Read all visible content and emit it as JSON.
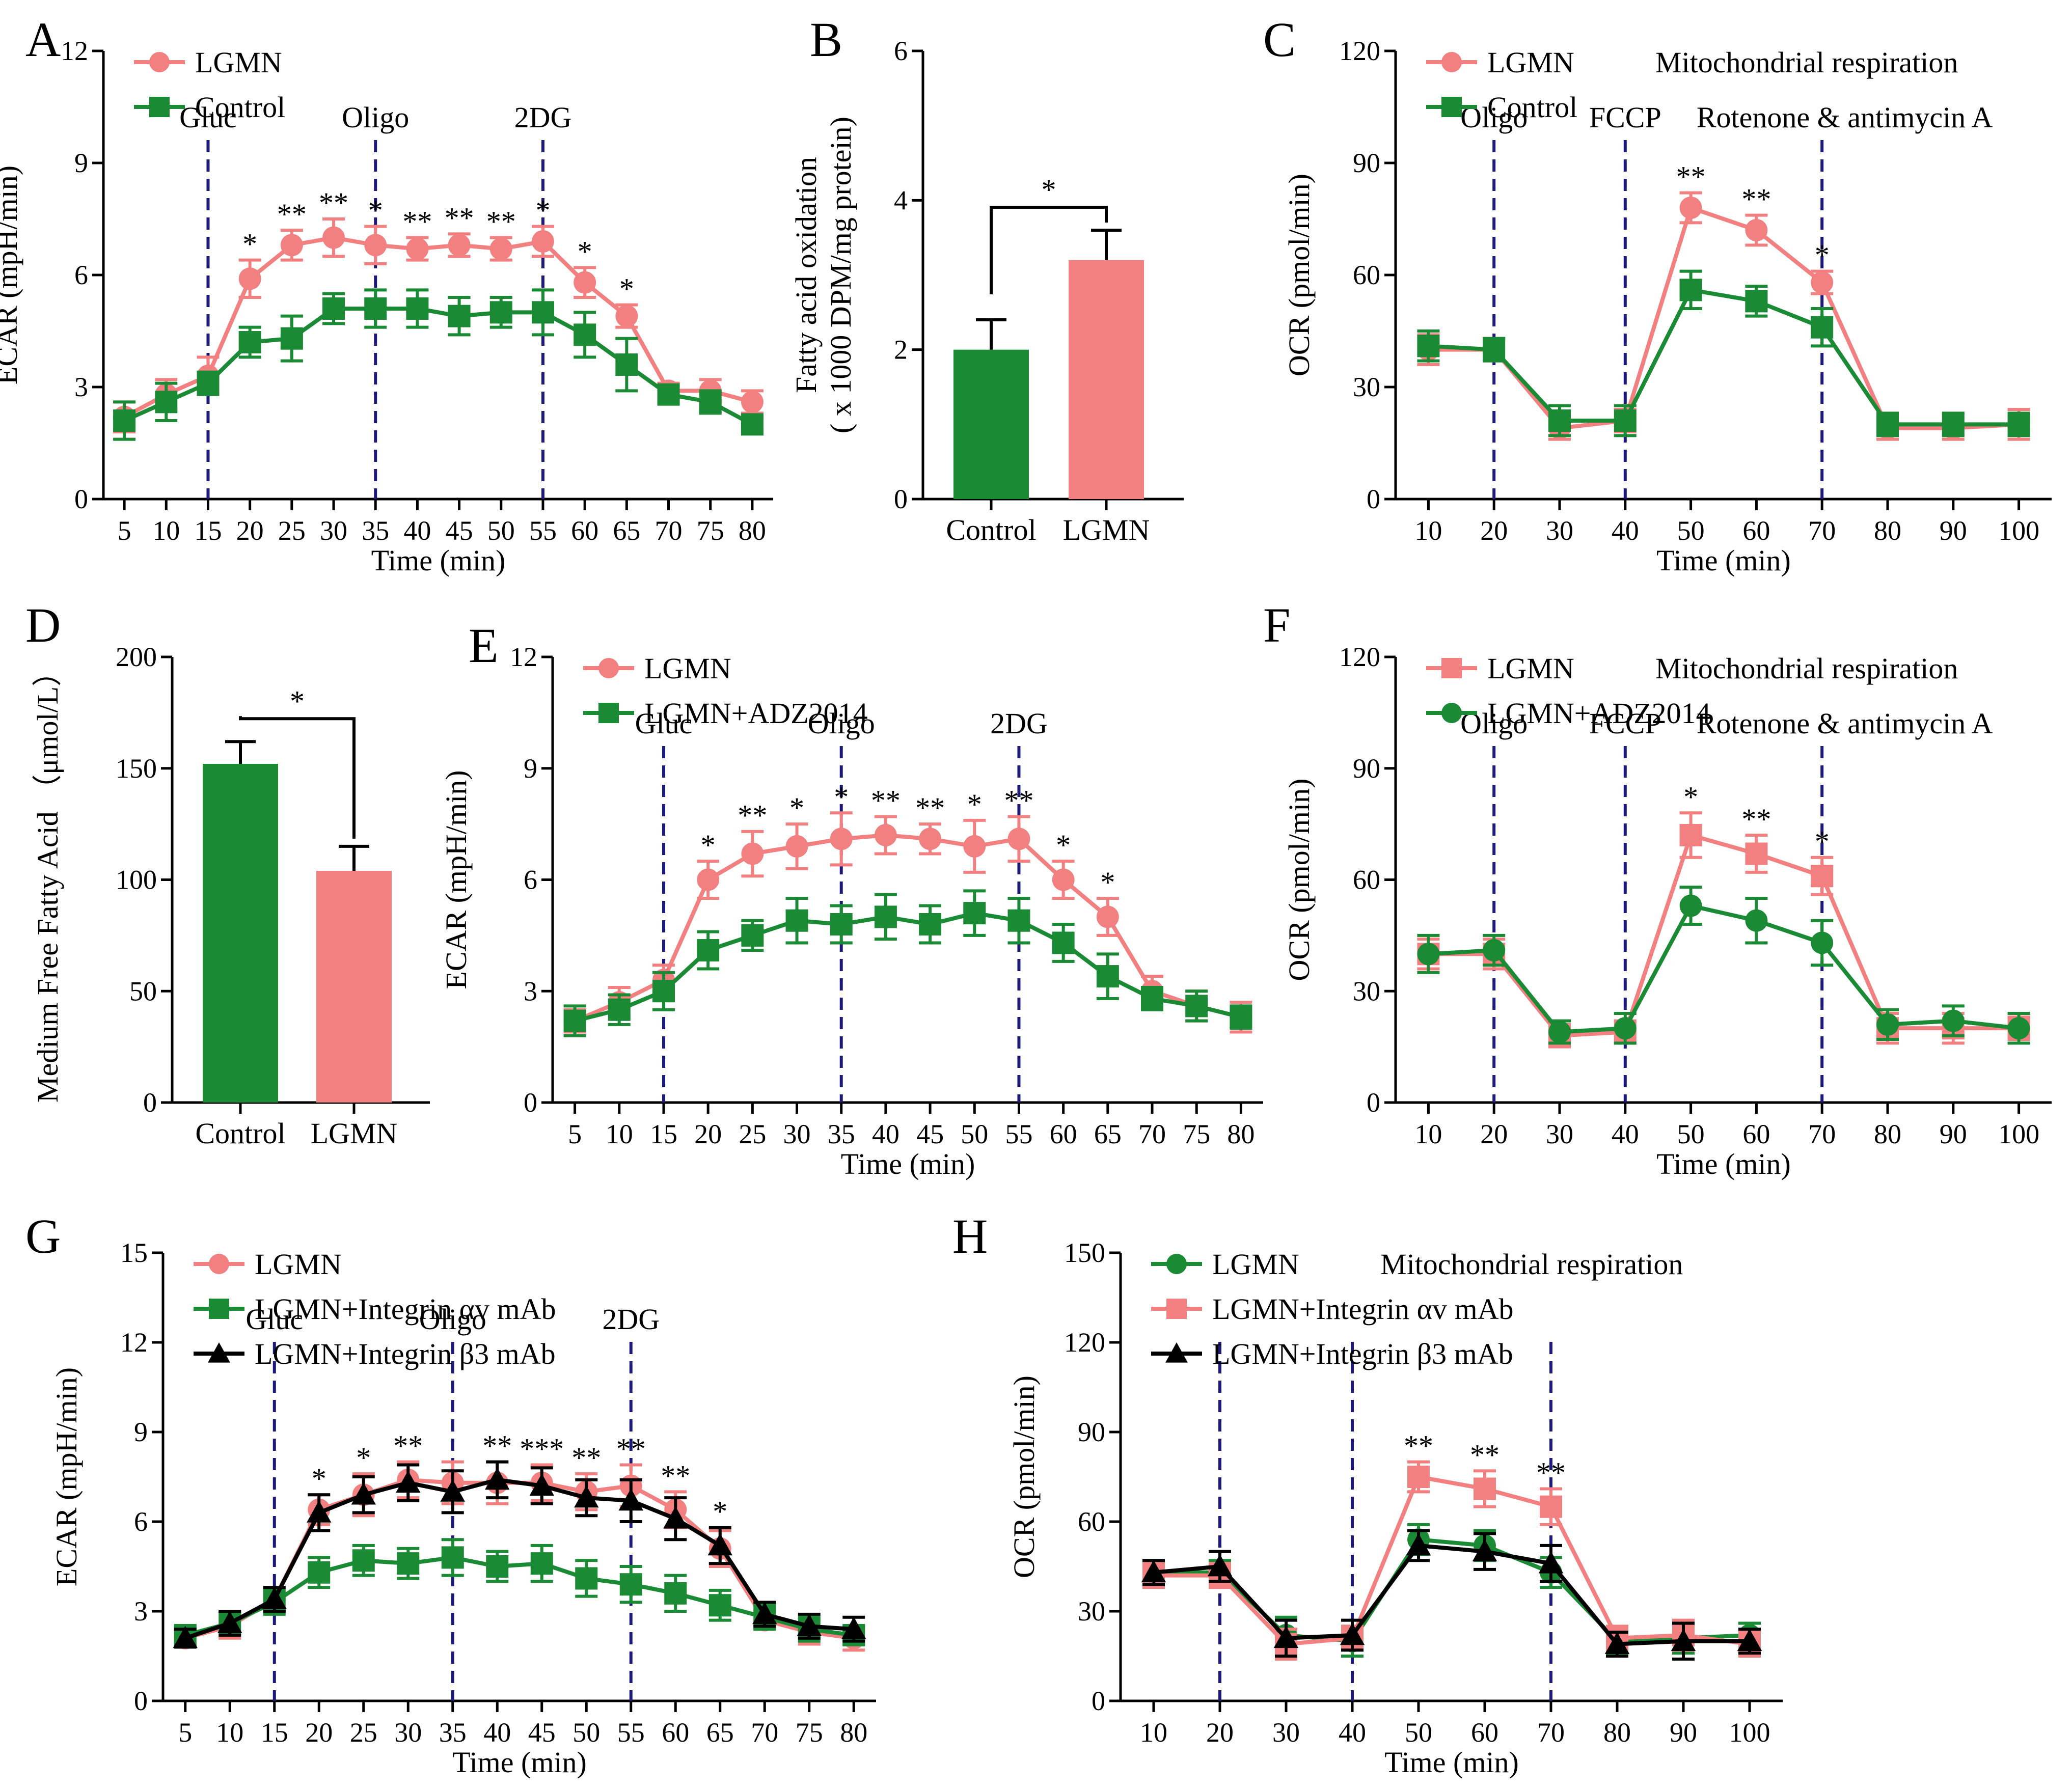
{
  "colors": {
    "lgmn": "#F28080",
    "control": "#1A8A35",
    "black": "#000000",
    "vline": "#1E1A7A"
  },
  "panels": [
    "A",
    "B",
    "C",
    "D",
    "E",
    "F",
    "G",
    "H"
  ],
  "chart_data": [
    {
      "panel": "A",
      "type": "line",
      "title": "",
      "xlabel": "Time (min)",
      "ylabel": "ECAR (mpH/min)",
      "ylim": [
        0,
        12
      ],
      "yticks": [
        0,
        3,
        6,
        9,
        12
      ],
      "x": [
        5,
        10,
        15,
        20,
        25,
        30,
        35,
        40,
        45,
        50,
        55,
        60,
        65,
        70,
        75,
        80
      ],
      "xlim": [
        2.5,
        82.5
      ],
      "xticks": [
        5,
        10,
        15,
        20,
        25,
        30,
        35,
        40,
        45,
        50,
        55,
        60,
        65,
        70,
        75,
        80
      ],
      "series": [
        {
          "name": "LGMN",
          "color": "#F28080",
          "marker": "circle",
          "values": [
            2.2,
            2.8,
            3.3,
            5.9,
            6.8,
            7.0,
            6.8,
            6.7,
            6.8,
            6.7,
            6.9,
            5.8,
            4.9,
            2.9,
            2.9,
            2.6
          ],
          "errors": [
            0.4,
            0.4,
            0.5,
            0.5,
            0.4,
            0.5,
            0.5,
            0.3,
            0.3,
            0.3,
            0.4,
            0.4,
            0.3,
            0.2,
            0.3,
            0.3
          ]
        },
        {
          "name": "Control",
          "color": "#1A8A35",
          "marker": "square",
          "values": [
            2.1,
            2.6,
            3.1,
            4.2,
            4.3,
            5.1,
            5.1,
            5.1,
            4.9,
            5.0,
            5.0,
            4.4,
            3.6,
            2.8,
            2.6,
            2.0
          ],
          "errors": [
            0.5,
            0.5,
            0.3,
            0.4,
            0.6,
            0.4,
            0.5,
            0.5,
            0.5,
            0.4,
            0.6,
            0.6,
            0.7,
            0.2,
            0.3,
            0.2
          ]
        }
      ],
      "vlines": [
        {
          "x": 15,
          "label": "Gluc"
        },
        {
          "x": 35,
          "label": "Oligo"
        },
        {
          "x": 55,
          "label": "2DG"
        }
      ],
      "significance": [
        {
          "x": 20,
          "text": "*"
        },
        {
          "x": 25,
          "text": "**"
        },
        {
          "x": 30,
          "text": "**"
        },
        {
          "x": 35,
          "text": "*"
        },
        {
          "x": 40,
          "text": "**"
        },
        {
          "x": 45,
          "text": "**"
        },
        {
          "x": 50,
          "text": "**"
        },
        {
          "x": 55,
          "text": "*"
        },
        {
          "x": 60,
          "text": "*"
        },
        {
          "x": 65,
          "text": "*"
        }
      ],
      "legend_title": ""
    },
    {
      "panel": "B",
      "type": "bar",
      "xlabel": "",
      "ylabel_lines": [
        "Fatty acid oxidation",
        "( x 1000 DPM/mg protein)"
      ],
      "ylim": [
        0,
        6
      ],
      "yticks": [
        0,
        2,
        4,
        6
      ],
      "categories": [
        "Control",
        "LGMN"
      ],
      "values": [
        2.0,
        3.2
      ],
      "errors": [
        0.4,
        0.4
      ],
      "bar_colors": [
        "#1A8A35",
        "#F28080"
      ],
      "significance": "*"
    },
    {
      "panel": "C",
      "type": "line",
      "xlabel": "Time (min)",
      "ylabel": "OCR (pmol/min)",
      "ylim": [
        0,
        120
      ],
      "yticks": [
        0,
        30,
        60,
        90,
        120
      ],
      "x": [
        10,
        20,
        30,
        40,
        50,
        60,
        70,
        80,
        90,
        100
      ],
      "xlim": [
        5,
        105
      ],
      "xticks": [
        10,
        20,
        30,
        40,
        50,
        60,
        70,
        80,
        90,
        100
      ],
      "series": [
        {
          "name": "LGMN",
          "color": "#F28080",
          "marker": "circle",
          "values": [
            40,
            40,
            19,
            21,
            78,
            72,
            58,
            19,
            19,
            20
          ],
          "errors": [
            4,
            3,
            3,
            3,
            4,
            4,
            3,
            3,
            3,
            4
          ]
        },
        {
          "name": "Control",
          "color": "#1A8A35",
          "marker": "square",
          "values": [
            41,
            40,
            21,
            21,
            56,
            53,
            46,
            20,
            20,
            20
          ],
          "errors": [
            4,
            3,
            4,
            4,
            5,
            4,
            5,
            3,
            3,
            3
          ]
        }
      ],
      "vlines": [
        {
          "x": 20,
          "label": "Oligo"
        },
        {
          "x": 40,
          "label": "FCCP"
        },
        {
          "x": 70,
          "label": ""
        }
      ],
      "vline_extra_label": "Rotenone & antimycin A",
      "significance": [
        {
          "x": 50,
          "text": "**"
        },
        {
          "x": 60,
          "text": "**"
        },
        {
          "x": 70,
          "text": "*"
        }
      ],
      "legend_title": "Mitochondrial respiration"
    },
    {
      "panel": "D",
      "type": "bar",
      "xlabel": "",
      "ylabel": "Medium Free Fatty Acid （μmol/L）",
      "ylim": [
        0,
        200
      ],
      "yticks": [
        0,
        50,
        100,
        150,
        200
      ],
      "categories": [
        "Control",
        "LGMN"
      ],
      "values": [
        152,
        104
      ],
      "errors": [
        10,
        11
      ],
      "bar_colors": [
        "#1A8A35",
        "#F28080"
      ],
      "significance": "*"
    },
    {
      "panel": "E",
      "type": "line",
      "xlabel": "Time (min)",
      "ylabel": "ECAR (mpH/min)",
      "ylim": [
        0,
        12
      ],
      "yticks": [
        0,
        3,
        6,
        9,
        12
      ],
      "x": [
        5,
        10,
        15,
        20,
        25,
        30,
        35,
        40,
        45,
        50,
        55,
        60,
        65,
        70,
        75,
        80
      ],
      "xlim": [
        2.5,
        82.5
      ],
      "xticks": [
        5,
        10,
        15,
        20,
        25,
        30,
        35,
        40,
        45,
        50,
        55,
        60,
        65,
        70,
        75,
        80
      ],
      "series": [
        {
          "name": "LGMN",
          "color": "#F28080",
          "marker": "circle",
          "values": [
            2.2,
            2.7,
            3.3,
            6.0,
            6.7,
            6.9,
            7.1,
            7.2,
            7.1,
            6.9,
            7.1,
            6.0,
            5.0,
            3.0,
            2.6,
            2.3
          ],
          "errors": [
            0.3,
            0.4,
            0.4,
            0.5,
            0.6,
            0.6,
            0.7,
            0.5,
            0.4,
            0.7,
            0.6,
            0.5,
            0.5,
            0.4,
            0.4,
            0.4
          ]
        },
        {
          "name": "LGMN+ADZ2014",
          "color": "#1A8A35",
          "marker": "square",
          "values": [
            2.2,
            2.5,
            3.0,
            4.1,
            4.5,
            4.9,
            4.8,
            5.0,
            4.8,
            5.1,
            4.9,
            4.3,
            3.4,
            2.8,
            2.6,
            2.3
          ],
          "errors": [
            0.4,
            0.4,
            0.5,
            0.5,
            0.4,
            0.6,
            0.5,
            0.6,
            0.5,
            0.6,
            0.6,
            0.5,
            0.6,
            0.3,
            0.4,
            0.3
          ]
        }
      ],
      "vlines": [
        {
          "x": 15,
          "label": "Gluc"
        },
        {
          "x": 35,
          "label": "Oligo"
        },
        {
          "x": 55,
          "label": "2DG"
        }
      ],
      "significance": [
        {
          "x": 20,
          "text": "*"
        },
        {
          "x": 25,
          "text": "**"
        },
        {
          "x": 30,
          "text": "*"
        },
        {
          "x": 35,
          "text": "*"
        },
        {
          "x": 40,
          "text": "**"
        },
        {
          "x": 45,
          "text": "**"
        },
        {
          "x": 50,
          "text": "*"
        },
        {
          "x": 55,
          "text": "**"
        },
        {
          "x": 60,
          "text": "*"
        },
        {
          "x": 65,
          "text": "*"
        }
      ],
      "legend_title": ""
    },
    {
      "panel": "F",
      "type": "line",
      "xlabel": "Time (min)",
      "ylabel": "OCR (pmol/min)",
      "ylim": [
        0,
        120
      ],
      "yticks": [
        0,
        30,
        60,
        90,
        120
      ],
      "x": [
        10,
        20,
        30,
        40,
        50,
        60,
        70,
        80,
        90,
        100
      ],
      "xlim": [
        5,
        105
      ],
      "xticks": [
        10,
        20,
        30,
        40,
        50,
        60,
        70,
        80,
        90,
        100
      ],
      "series": [
        {
          "name": "LGMN",
          "color": "#F28080",
          "marker": "square",
          "values": [
            40,
            40,
            18,
            19,
            72,
            67,
            61,
            20,
            20,
            20
          ],
          "errors": [
            4,
            4,
            3,
            3,
            6,
            5,
            5,
            4,
            4,
            3
          ]
        },
        {
          "name": "LGMN+ADZ2014",
          "color": "#1A8A35",
          "marker": "circle",
          "values": [
            40,
            41,
            19,
            20,
            53,
            49,
            43,
            21,
            22,
            20
          ],
          "errors": [
            5,
            4,
            3,
            4,
            5,
            6,
            6,
            4,
            4,
            4
          ]
        }
      ],
      "vlines": [
        {
          "x": 20,
          "label": "Oligo"
        },
        {
          "x": 40,
          "label": "FCCP"
        },
        {
          "x": 70,
          "label": ""
        }
      ],
      "vline_extra_label": "Rotenone & antimycin A",
      "significance": [
        {
          "x": 50,
          "text": "*"
        },
        {
          "x": 60,
          "text": "**"
        },
        {
          "x": 70,
          "text": "*"
        }
      ],
      "legend_title": "Mitochondrial respiration"
    },
    {
      "panel": "G",
      "type": "line",
      "xlabel": "Time (min)",
      "ylabel": "ECAR (mpH/min)",
      "ylim": [
        0,
        15
      ],
      "yticks": [
        0,
        3,
        6,
        9,
        12,
        15
      ],
      "x": [
        5,
        10,
        15,
        20,
        25,
        30,
        35,
        40,
        45,
        50,
        55,
        60,
        65,
        70,
        75,
        80
      ],
      "xlim": [
        2.5,
        82.5
      ],
      "xticks": [
        5,
        10,
        15,
        20,
        25,
        30,
        35,
        40,
        45,
        50,
        55,
        60,
        65,
        70,
        75,
        80
      ],
      "series": [
        {
          "name": "LGMN",
          "color": "#F28080",
          "marker": "circle",
          "values": [
            2.1,
            2.5,
            3.4,
            6.4,
            6.9,
            7.4,
            7.3,
            7.3,
            7.3,
            7.0,
            7.2,
            6.4,
            5.1,
            2.7,
            2.3,
            2.1
          ],
          "errors": [
            0.3,
            0.4,
            0.4,
            0.5,
            0.7,
            0.6,
            0.7,
            0.7,
            0.6,
            0.6,
            0.7,
            0.6,
            0.6,
            0.3,
            0.4,
            0.4
          ]
        },
        {
          "name": "LGMN+Integrin αv mAb",
          "color": "#1A8A35",
          "marker": "square",
          "values": [
            2.2,
            2.6,
            3.3,
            4.3,
            4.7,
            4.6,
            4.8,
            4.5,
            4.6,
            4.1,
            3.9,
            3.6,
            3.2,
            2.8,
            2.4,
            2.2
          ],
          "errors": [
            0.3,
            0.4,
            0.4,
            0.5,
            0.5,
            0.5,
            0.6,
            0.5,
            0.6,
            0.6,
            0.6,
            0.6,
            0.5,
            0.4,
            0.4,
            0.3
          ]
        },
        {
          "name": "LGMN+Integrin β3 mAb",
          "color": "#000000",
          "marker": "triangle",
          "values": [
            2.1,
            2.6,
            3.4,
            6.3,
            6.9,
            7.3,
            7.0,
            7.4,
            7.2,
            6.8,
            6.7,
            6.1,
            5.2,
            2.9,
            2.5,
            2.4
          ],
          "errors": [
            0.3,
            0.4,
            0.4,
            0.6,
            0.6,
            0.6,
            0.7,
            0.6,
            0.6,
            0.6,
            0.7,
            0.7,
            0.6,
            0.4,
            0.4,
            0.4
          ]
        }
      ],
      "vlines": [
        {
          "x": 15,
          "label": "Gluc"
        },
        {
          "x": 35,
          "label": "Oligo"
        },
        {
          "x": 55,
          "label": "2DG"
        }
      ],
      "significance": [
        {
          "x": 20,
          "text": "*"
        },
        {
          "x": 25,
          "text": "*"
        },
        {
          "x": 30,
          "text": "**"
        },
        {
          "x": 40,
          "text": "**"
        },
        {
          "x": 45,
          "text": "***"
        },
        {
          "x": 50,
          "text": "**"
        },
        {
          "x": 55,
          "text": "**"
        },
        {
          "x": 60,
          "text": "**"
        },
        {
          "x": 65,
          "text": "*"
        }
      ],
      "legend_title": ""
    },
    {
      "panel": "H",
      "type": "line",
      "xlabel": "Time (min)",
      "ylabel": "OCR (pmol/min)",
      "ylim": [
        0,
        150
      ],
      "yticks": [
        0,
        30,
        60,
        90,
        120,
        150
      ],
      "x": [
        10,
        20,
        30,
        40,
        50,
        60,
        70,
        80,
        90,
        100
      ],
      "xlim": [
        5,
        105
      ],
      "xticks": [
        10,
        20,
        30,
        40,
        50,
        60,
        70,
        80,
        90,
        100
      ],
      "series": [
        {
          "name": "LGMN",
          "color": "#1A8A35",
          "marker": "circle",
          "values": [
            43,
            43,
            22,
            20,
            54,
            52,
            43,
            20,
            21,
            22
          ],
          "errors": [
            4,
            4,
            6,
            5,
            5,
            5,
            5,
            4,
            5,
            4
          ]
        },
        {
          "name": "LGMN+Integrin αv mAb",
          "color": "#F28080",
          "marker": "square",
          "values": [
            42,
            42,
            19,
            21,
            75,
            71,
            65,
            21,
            22,
            19
          ],
          "errors": [
            4,
            4,
            5,
            4,
            5,
            6,
            6,
            4,
            5,
            4
          ]
        },
        {
          "name": "LGMN+Integrin β3 mAb",
          "color": "#000000",
          "marker": "triangle",
          "values": [
            43,
            45,
            21,
            22,
            52,
            50,
            46,
            19,
            20,
            20
          ],
          "errors": [
            4,
            5,
            6,
            5,
            5,
            6,
            6,
            4,
            6,
            4
          ]
        }
      ],
      "vlines": [
        {
          "x": 20,
          "label": ""
        },
        {
          "x": 40,
          "label": ""
        },
        {
          "x": 70,
          "label": ""
        }
      ],
      "significance": [
        {
          "x": 50,
          "text": "**"
        },
        {
          "x": 60,
          "text": "**"
        },
        {
          "x": 70,
          "text": "**"
        }
      ],
      "legend_title": "Mitochondrial respiration"
    }
  ]
}
